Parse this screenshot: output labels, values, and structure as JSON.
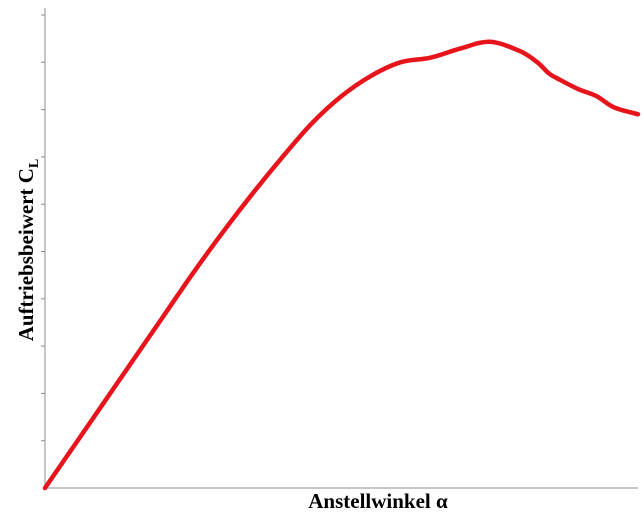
{
  "chart_data": {
    "type": "line",
    "title": "",
    "xlabel": "Anstellwinkel α",
    "ylabel_main": "Auftriebsbeiwert C",
    "ylabel_subscript": "L",
    "xlim": [
      0,
      1
    ],
    "ylim": [
      0,
      1
    ],
    "grid": false,
    "legend": "none",
    "y_tick_count": 10,
    "series": [
      {
        "color": "#e8141c",
        "x": [
          0,
          0.05,
          0.1,
          0.15,
          0.2,
          0.25,
          0.3,
          0.35,
          0.4,
          0.45,
          0.5,
          0.55,
          0.6,
          0.65,
          0.7,
          0.75,
          0.8,
          0.83,
          0.85,
          0.87,
          0.9,
          0.93,
          0.96,
          1.0
        ],
        "y": [
          0,
          0.095,
          0.19,
          0.285,
          0.38,
          0.475,
          0.565,
          0.65,
          0.73,
          0.805,
          0.865,
          0.91,
          0.94,
          0.95,
          0.97,
          0.985,
          0.965,
          0.94,
          0.915,
          0.9,
          0.88,
          0.865,
          0.84,
          0.825
        ]
      }
    ]
  }
}
